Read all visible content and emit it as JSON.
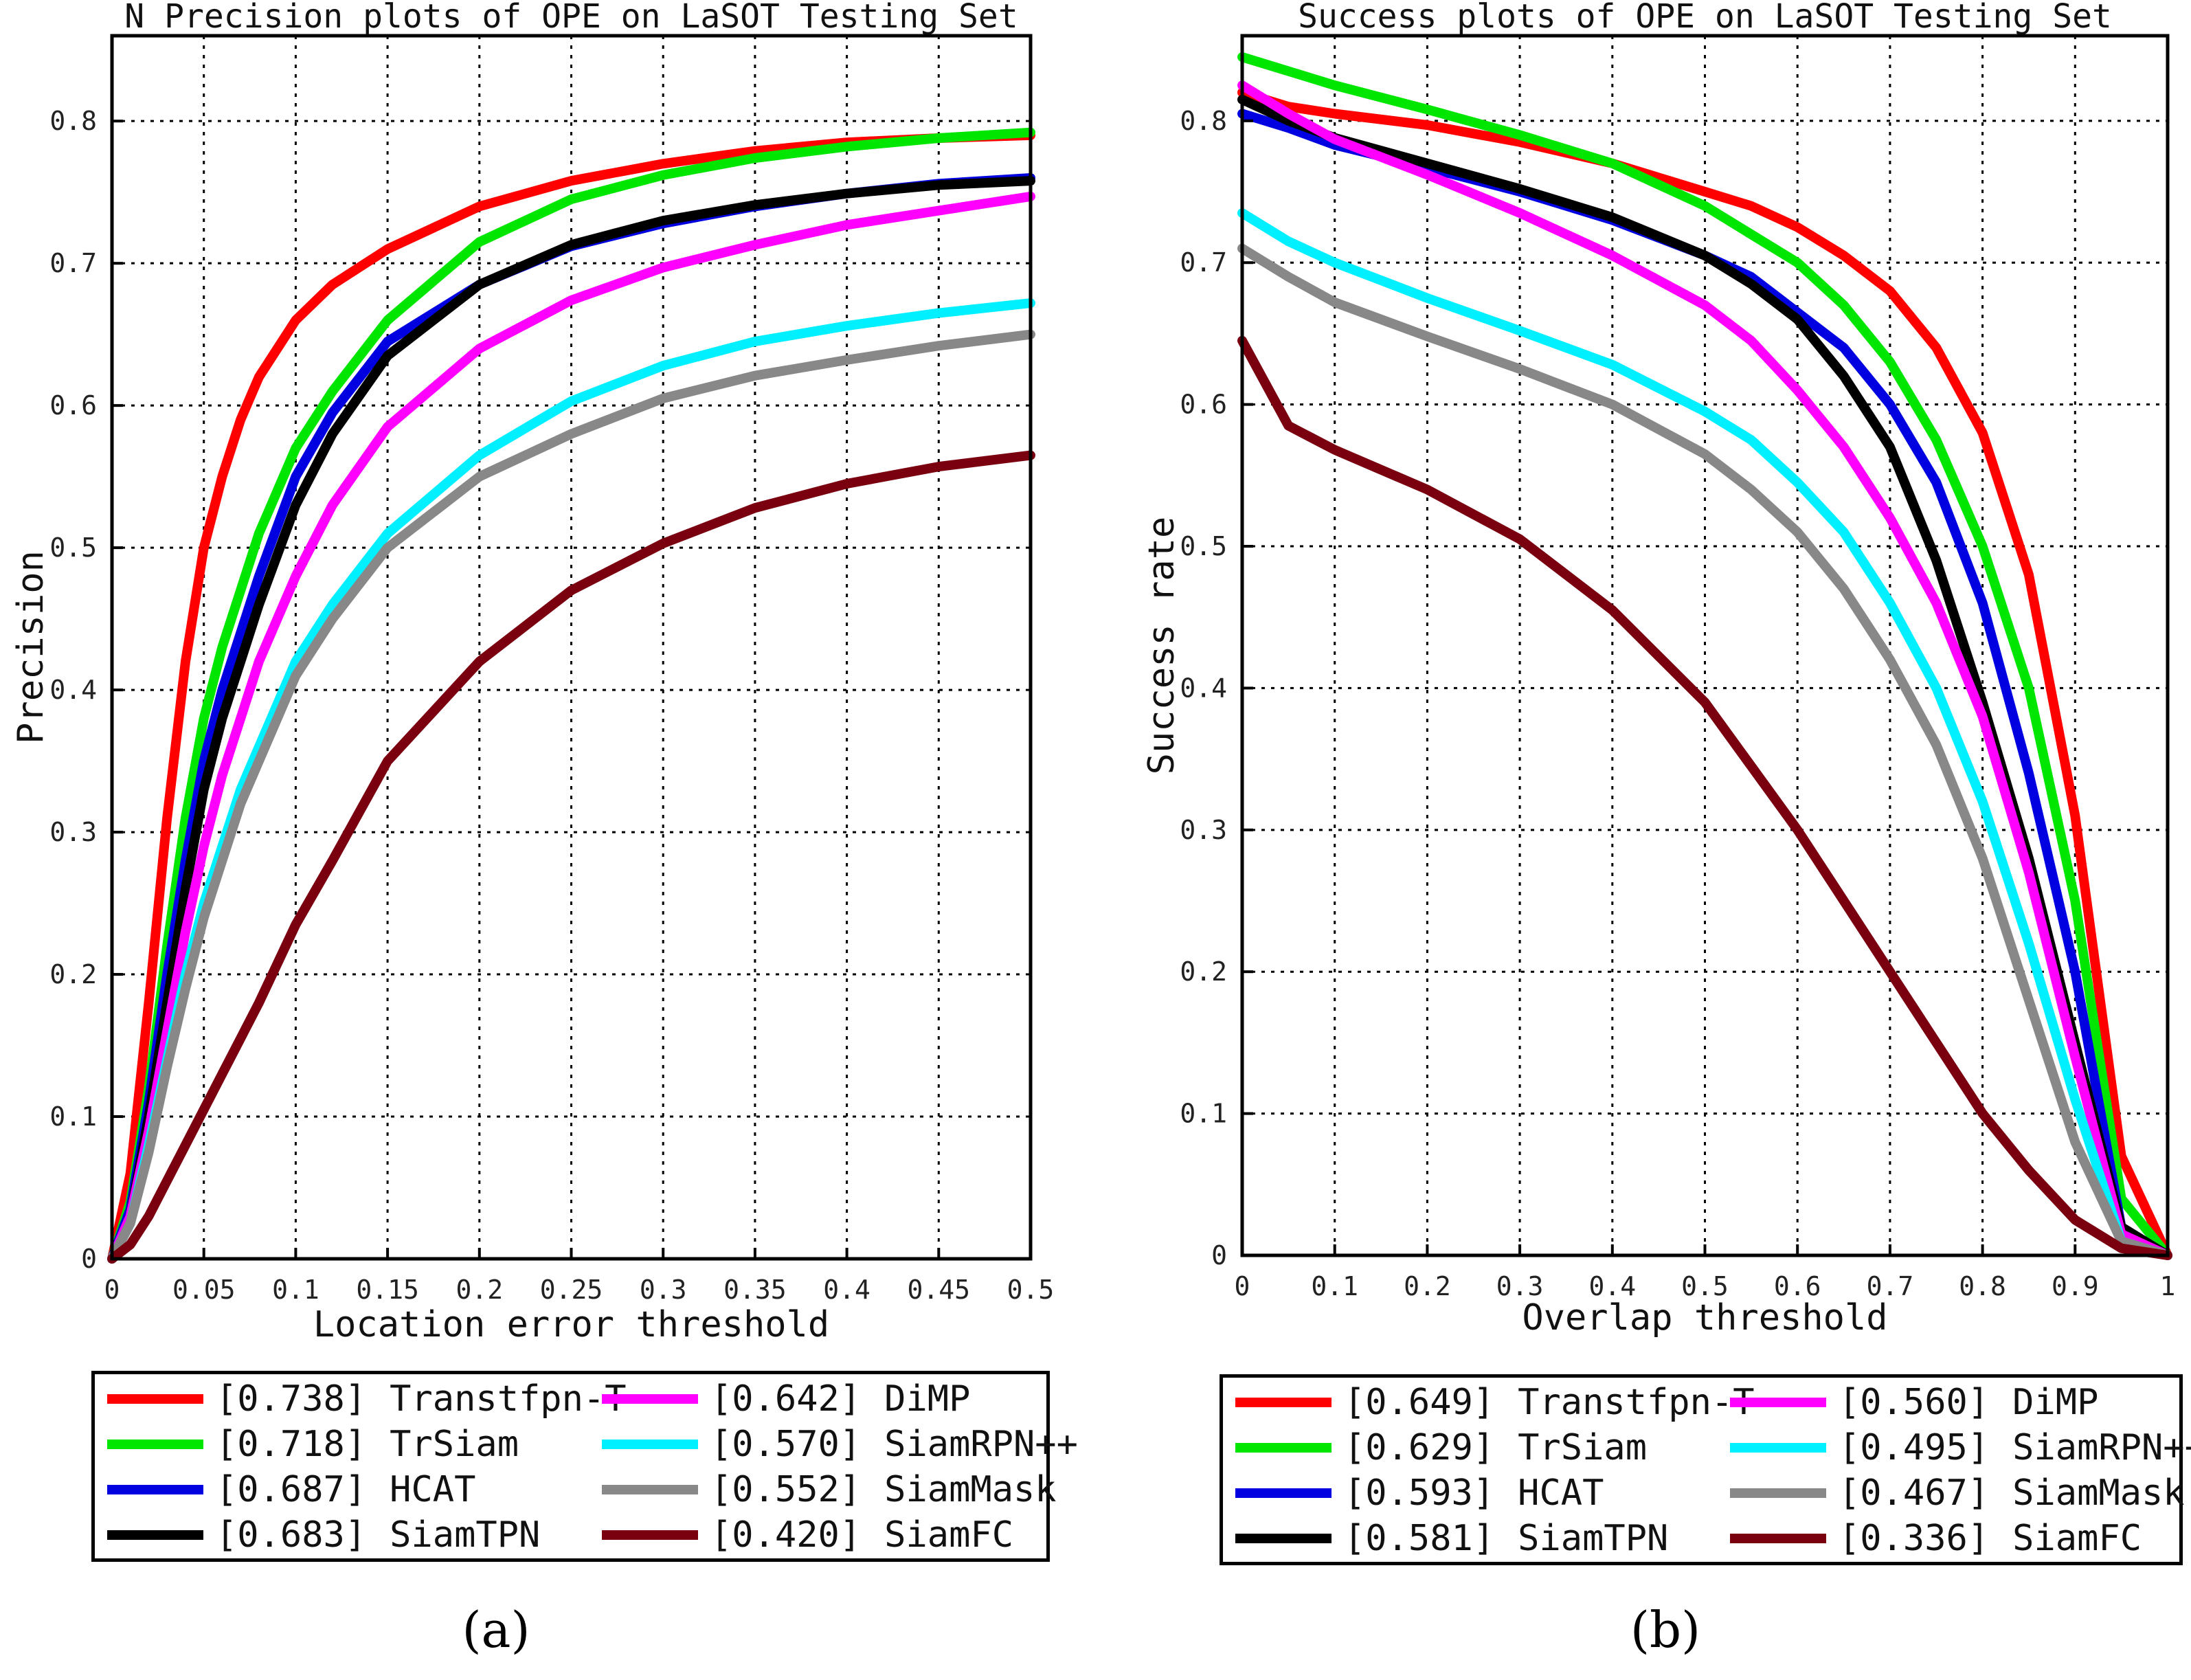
{
  "chart_data": [
    {
      "type": "line",
      "panel": "(a)",
      "title": "N Precision plots of OPE on LaSOT Testing Set",
      "xlabel": "Location error threshold",
      "ylabel": "Precision",
      "xlim": [
        0,
        0.5
      ],
      "ylim": [
        0,
        0.86
      ],
      "xticks": [
        0,
        0.05,
        0.1,
        0.15,
        0.2,
        0.25,
        0.3,
        0.35,
        0.4,
        0.45,
        0.5
      ],
      "xtick_labels": [
        "0",
        "0.05",
        "0.1",
        "0.15",
        "0.2",
        "0.25",
        "0.3",
        "0.35",
        "0.4",
        "0.45",
        "0.5"
      ],
      "yticks": [
        0,
        0.1,
        0.2,
        0.3,
        0.4,
        0.5,
        0.6,
        0.7,
        0.8
      ],
      "ytick_labels": [
        "0",
        "0.1",
        "0.2",
        "0.3",
        "0.4",
        "0.5",
        "0.6",
        "0.7",
        "0.8"
      ],
      "grid": true,
      "legend_position": "below",
      "x": [
        0,
        0.01,
        0.02,
        0.03,
        0.04,
        0.05,
        0.06,
        0.07,
        0.08,
        0.1,
        0.12,
        0.15,
        0.2,
        0.25,
        0.3,
        0.35,
        0.4,
        0.45,
        0.5
      ],
      "series": [
        {
          "name": "Transtfpn-T",
          "score": "[0.738]",
          "color": "#ff0000",
          "values": [
            0,
            0.06,
            0.18,
            0.31,
            0.42,
            0.5,
            0.55,
            0.59,
            0.62,
            0.66,
            0.685,
            0.71,
            0.74,
            0.758,
            0.77,
            0.779,
            0.785,
            0.788,
            0.79
          ]
        },
        {
          "name": "TrSiam",
          "score": "[0.718]",
          "color": "#00e600",
          "values": [
            0,
            0.04,
            0.12,
            0.22,
            0.31,
            0.38,
            0.43,
            0.47,
            0.51,
            0.57,
            0.61,
            0.66,
            0.715,
            0.745,
            0.762,
            0.774,
            0.782,
            0.788,
            0.792
          ]
        },
        {
          "name": "HCAT",
          "score": "[0.687]",
          "color": "#0000e0",
          "values": [
            0,
            0.035,
            0.11,
            0.2,
            0.28,
            0.35,
            0.4,
            0.44,
            0.48,
            0.55,
            0.595,
            0.645,
            0.685,
            0.712,
            0.728,
            0.74,
            0.749,
            0.756,
            0.76
          ]
        },
        {
          "name": "SiamTPN",
          "score": "[0.683]",
          "color": "#000000",
          "values": [
            0,
            0.03,
            0.1,
            0.18,
            0.26,
            0.33,
            0.38,
            0.42,
            0.46,
            0.53,
            0.58,
            0.635,
            0.685,
            0.713,
            0.73,
            0.741,
            0.749,
            0.755,
            0.758
          ]
        },
        {
          "name": "DiMP",
          "score": "[0.642]",
          "color": "#ff00ff",
          "values": [
            0,
            0.03,
            0.09,
            0.16,
            0.23,
            0.29,
            0.34,
            0.38,
            0.42,
            0.48,
            0.53,
            0.585,
            0.64,
            0.674,
            0.697,
            0.713,
            0.727,
            0.737,
            0.747
          ]
        },
        {
          "name": "SiamRPN++",
          "score": "[0.570]",
          "color": "#00f0ff",
          "values": [
            0,
            0.025,
            0.08,
            0.14,
            0.2,
            0.25,
            0.29,
            0.33,
            0.36,
            0.42,
            0.46,
            0.51,
            0.565,
            0.603,
            0.628,
            0.645,
            0.656,
            0.665,
            0.672
          ]
        },
        {
          "name": "SiamMask",
          "score": "[0.552]",
          "color": "#888888",
          "values": [
            0,
            0.025,
            0.075,
            0.135,
            0.19,
            0.24,
            0.28,
            0.32,
            0.35,
            0.41,
            0.45,
            0.5,
            0.55,
            0.58,
            0.605,
            0.621,
            0.632,
            0.642,
            0.65
          ]
        },
        {
          "name": "SiamFC",
          "score": "[0.420]",
          "color": "#7a0010",
          "values": [
            0,
            0.01,
            0.03,
            0.055,
            0.08,
            0.105,
            0.13,
            0.155,
            0.18,
            0.235,
            0.28,
            0.35,
            0.42,
            0.47,
            0.503,
            0.528,
            0.545,
            0.557,
            0.565
          ]
        }
      ]
    },
    {
      "type": "line",
      "panel": "(b)",
      "title": "Success plots of OPE on LaSOT Testing Set",
      "xlabel": "Overlap threshold",
      "ylabel": "Success rate",
      "xlim": [
        0,
        1
      ],
      "ylim": [
        0,
        0.86
      ],
      "xticks": [
        0,
        0.1,
        0.2,
        0.3,
        0.4,
        0.5,
        0.6,
        0.7,
        0.8,
        0.9,
        1
      ],
      "xtick_labels": [
        "0",
        "0.1",
        "0.2",
        "0.3",
        "0.4",
        "0.5",
        "0.6",
        "0.7",
        "0.8",
        "0.9",
        "1"
      ],
      "yticks": [
        0,
        0.1,
        0.2,
        0.3,
        0.4,
        0.5,
        0.6,
        0.7,
        0.8
      ],
      "ytick_labels": [
        "0",
        "0.1",
        "0.2",
        "0.3",
        "0.4",
        "0.5",
        "0.6",
        "0.7",
        "0.8"
      ],
      "grid": true,
      "legend_position": "below",
      "x": [
        0,
        0.05,
        0.1,
        0.2,
        0.3,
        0.4,
        0.5,
        0.55,
        0.6,
        0.65,
        0.7,
        0.75,
        0.8,
        0.85,
        0.9,
        0.95,
        1
      ],
      "series": [
        {
          "name": "Transtfpn-T",
          "score": "[0.649]",
          "color": "#ff0000",
          "values": [
            0.82,
            0.81,
            0.805,
            0.797,
            0.785,
            0.77,
            0.75,
            0.74,
            0.725,
            0.705,
            0.68,
            0.64,
            0.58,
            0.48,
            0.31,
            0.07,
            0
          ]
        },
        {
          "name": "TrSiam",
          "score": "[0.629]",
          "color": "#00e600",
          "values": [
            0.845,
            0.835,
            0.825,
            0.808,
            0.79,
            0.77,
            0.74,
            0.72,
            0.7,
            0.67,
            0.63,
            0.575,
            0.5,
            0.4,
            0.25,
            0.04,
            0
          ]
        },
        {
          "name": "HCAT",
          "score": "[0.593]",
          "color": "#0000e0",
          "values": [
            0.805,
            0.795,
            0.783,
            0.767,
            0.75,
            0.73,
            0.705,
            0.69,
            0.665,
            0.64,
            0.6,
            0.545,
            0.46,
            0.34,
            0.2,
            0.02,
            0
          ]
        },
        {
          "name": "SiamTPN",
          "score": "[0.581]",
          "color": "#000000",
          "values": [
            0.815,
            0.8,
            0.788,
            0.77,
            0.752,
            0.732,
            0.705,
            0.685,
            0.66,
            0.62,
            0.57,
            0.49,
            0.39,
            0.28,
            0.15,
            0.02,
            0
          ]
        },
        {
          "name": "DiMP",
          "score": "[0.560]",
          "color": "#ff00ff",
          "values": [
            0.825,
            0.805,
            0.787,
            0.762,
            0.735,
            0.705,
            0.67,
            0.645,
            0.61,
            0.57,
            0.52,
            0.46,
            0.38,
            0.27,
            0.14,
            0.015,
            0
          ]
        },
        {
          "name": "SiamRPN++",
          "score": "[0.495]",
          "color": "#00f0ff",
          "values": [
            0.735,
            0.715,
            0.7,
            0.675,
            0.652,
            0.628,
            0.595,
            0.575,
            0.545,
            0.51,
            0.46,
            0.4,
            0.32,
            0.22,
            0.11,
            0.01,
            0
          ]
        },
        {
          "name": "SiamMask",
          "score": "[0.467]",
          "color": "#888888",
          "values": [
            0.71,
            0.69,
            0.672,
            0.648,
            0.625,
            0.6,
            0.565,
            0.54,
            0.51,
            0.47,
            0.42,
            0.36,
            0.28,
            0.18,
            0.08,
            0.01,
            0
          ]
        },
        {
          "name": "SiamFC",
          "score": "[0.336]",
          "color": "#7a0010",
          "values": [
            0.645,
            0.585,
            0.568,
            0.54,
            0.505,
            0.455,
            0.39,
            0.345,
            0.3,
            0.25,
            0.2,
            0.15,
            0.1,
            0.06,
            0.025,
            0.005,
            0
          ]
        }
      ]
    }
  ],
  "panel_labels": [
    "(a)",
    "(b)"
  ]
}
